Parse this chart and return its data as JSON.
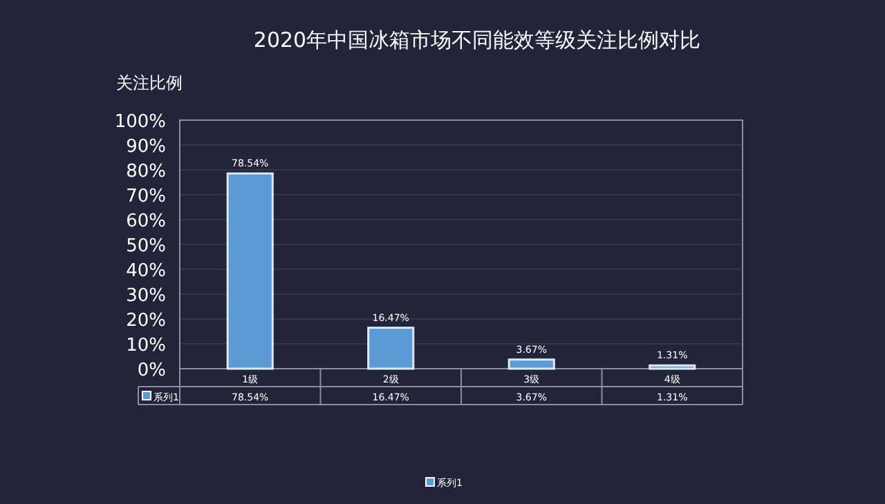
{
  "chart_data": {
    "type": "bar",
    "title": "2020年中国冰箱市场不同能效等级关注比例对比",
    "ylabel": "关注比例",
    "categories": [
      "1级",
      "2级",
      "3级",
      "4级"
    ],
    "series": [
      {
        "name": "系列1",
        "color": "#5b9bd5",
        "values": [
          78.54,
          16.47,
          3.67,
          1.31
        ],
        "value_labels": [
          "78.54%",
          "16.47%",
          "3.67%",
          "1.31%"
        ]
      }
    ],
    "ylim": [
      0,
      100
    ],
    "yticks": [
      {
        "value": 0,
        "label": "0%"
      },
      {
        "value": 10,
        "label": "10%"
      },
      {
        "value": 20,
        "label": "20%"
      },
      {
        "value": 30,
        "label": "30%"
      },
      {
        "value": 40,
        "label": "40%"
      },
      {
        "value": 50,
        "label": "50%"
      },
      {
        "value": 60,
        "label": "60%"
      },
      {
        "value": 70,
        "label": "70%"
      },
      {
        "value": 80,
        "label": "80%"
      },
      {
        "value": 90,
        "label": "90%"
      },
      {
        "value": 100,
        "label": "100%"
      }
    ],
    "grid": "y",
    "legend": "bottom"
  }
}
